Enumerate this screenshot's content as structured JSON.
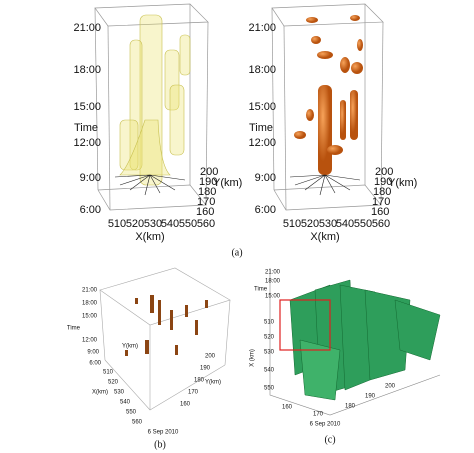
{
  "panel_a": {
    "caption": "(a)",
    "left": {
      "time_ticks": [
        "21:00",
        "18:00",
        "15:00",
        "12:00",
        "9:00",
        "6:00"
      ],
      "time_label": "Time",
      "x_ticks": [
        "510",
        "520",
        "530",
        "540",
        "550",
        "560"
      ],
      "x_label": "X(km)",
      "y_ticks": [
        "200",
        "190",
        "180",
        "170",
        "160"
      ],
      "y_label": "Y(km)"
    },
    "right": {
      "time_ticks": [
        "21:00",
        "18:00",
        "15:00",
        "12:00",
        "9:00",
        "6:00"
      ],
      "time_label": "Time",
      "x_ticks": [
        "510",
        "520",
        "530",
        "540",
        "550",
        "560"
      ],
      "x_label": "X(km)",
      "y_ticks": [
        "200",
        "190",
        "180",
        "170",
        "160"
      ],
      "y_label": "Y(km)"
    }
  },
  "panel_b": {
    "caption": "(b)",
    "date": "6 Sep 2010",
    "time_ticks": [
      "21:00",
      "18:00",
      "15:00",
      "12:00",
      "9:00",
      "6:00"
    ],
    "time_label": "Time",
    "x_ticks": [
      "510",
      "520",
      "530",
      "540",
      "550",
      "560"
    ],
    "x_label": "X(km)",
    "y_ticks": [
      "200",
      "190",
      "180",
      "170",
      "160"
    ],
    "y_labels": [
      "Y(km)",
      "Y(km)"
    ]
  },
  "panel_c": {
    "caption": "(c)",
    "date": "6 Sep 2010",
    "time_ticks": [
      "21:00",
      "18:00",
      "15:00"
    ],
    "time_label": "Time",
    "x_ticks": [
      "510",
      "520",
      "530",
      "540",
      "550"
    ],
    "x_label": "X (km)",
    "y_ticks": [
      "160",
      "170",
      "180",
      "190",
      "200"
    ]
  }
}
